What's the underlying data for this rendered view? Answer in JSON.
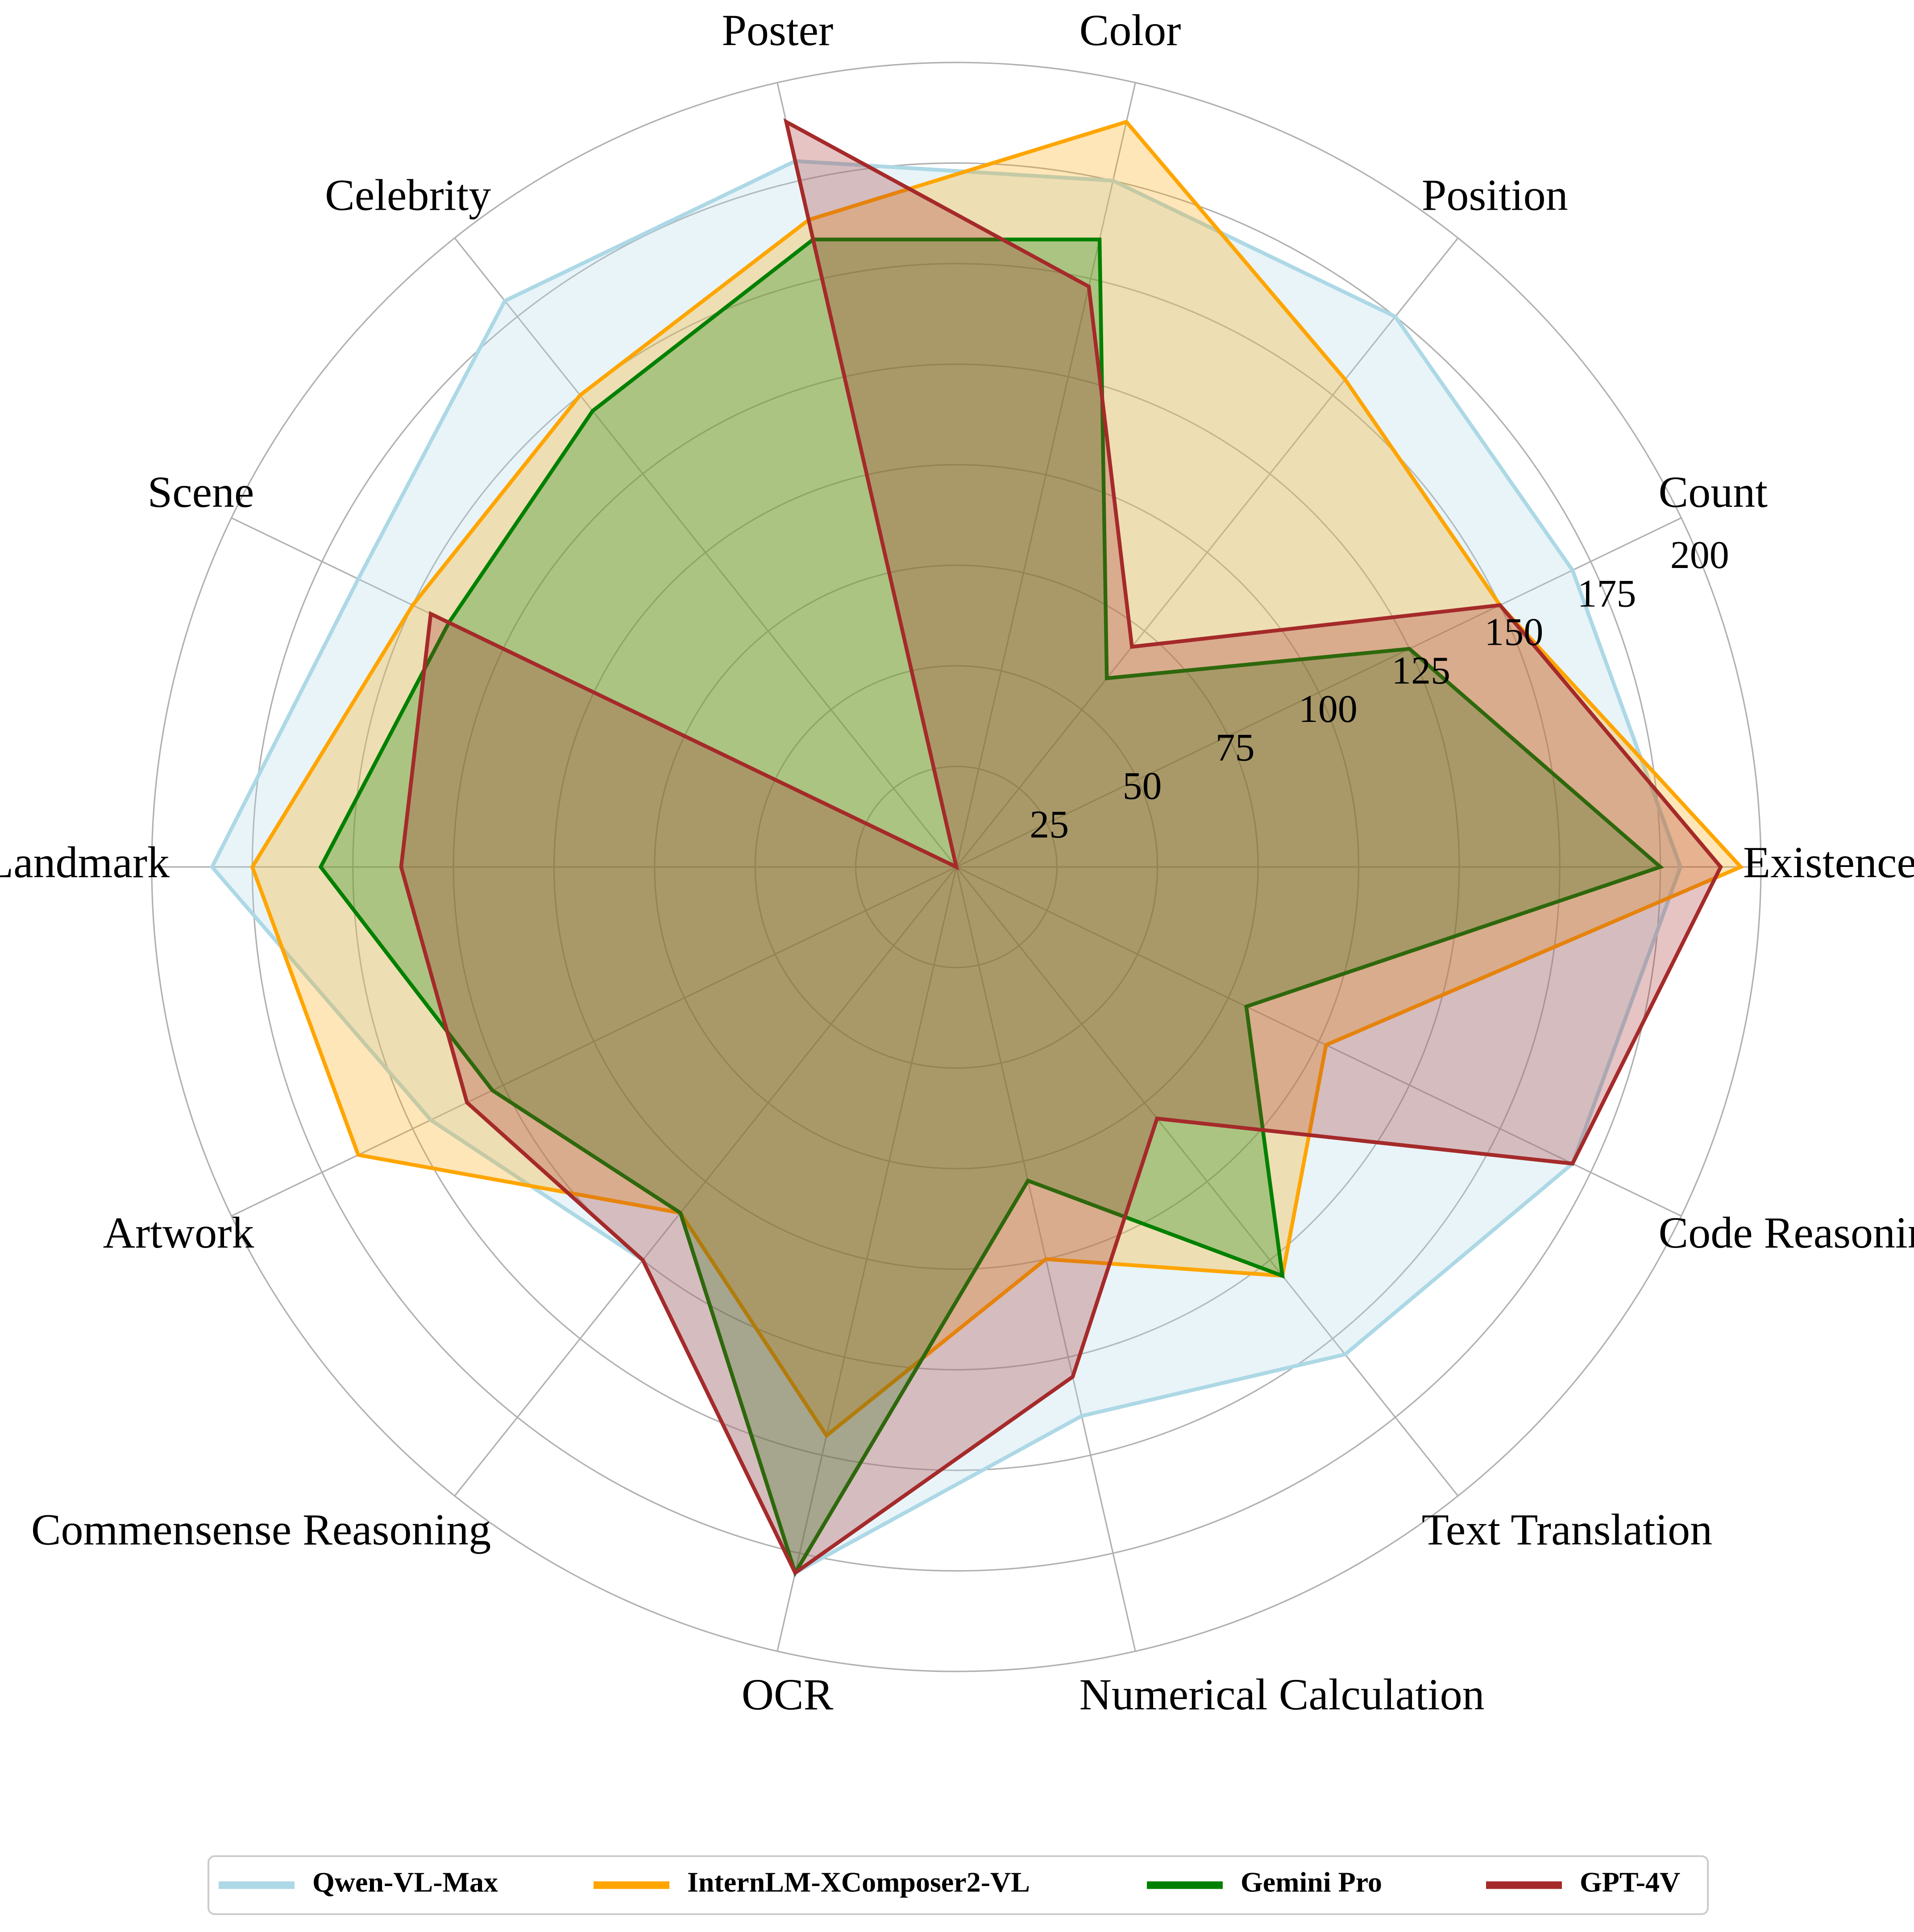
{
  "chart_data": {
    "type": "radar",
    "categories": [
      "Existence",
      "Count",
      "Position",
      "Color",
      "Poster",
      "Celebrity",
      "Scene",
      "Landmark",
      "Artwork",
      "Commensense Reasoning",
      "OCR",
      "Numerical Calculation",
      "Text Translation",
      "Code Reasoning"
    ],
    "rticks": [
      25,
      50,
      75,
      100,
      125,
      150,
      175,
      200
    ],
    "rlim": [
      0,
      200
    ],
    "grid": true,
    "legend_position": "bottom",
    "series": [
      {
        "name": "Qwen-VL-Max",
        "color": "#add8e6",
        "fill_opacity": 0.28,
        "values": [
          180,
          170,
          175,
          175,
          180,
          180,
          165,
          185,
          145,
          125,
          180,
          140,
          155,
          170
        ]
      },
      {
        "name": "InternLM-XComposer2-VL",
        "color": "#ffa500",
        "fill_opacity": 0.28,
        "values": [
          195,
          150,
          155,
          190,
          165,
          150,
          150,
          175,
          165,
          110,
          145,
          100,
          130,
          102
        ]
      },
      {
        "name": "Gemini Pro",
        "color": "#008000",
        "fill_opacity": 0.28,
        "values": [
          175,
          125,
          60,
          160,
          160,
          145,
          140,
          158,
          128,
          110,
          180,
          80,
          130,
          80
        ]
      },
      {
        "name": "GPT-4V",
        "color": "#a52a2a",
        "fill_opacity": 0.28,
        "values": [
          190,
          150,
          70,
          148,
          190,
          0,
          145,
          138,
          135,
          125,
          180,
          130,
          80,
          170
        ]
      }
    ]
  }
}
